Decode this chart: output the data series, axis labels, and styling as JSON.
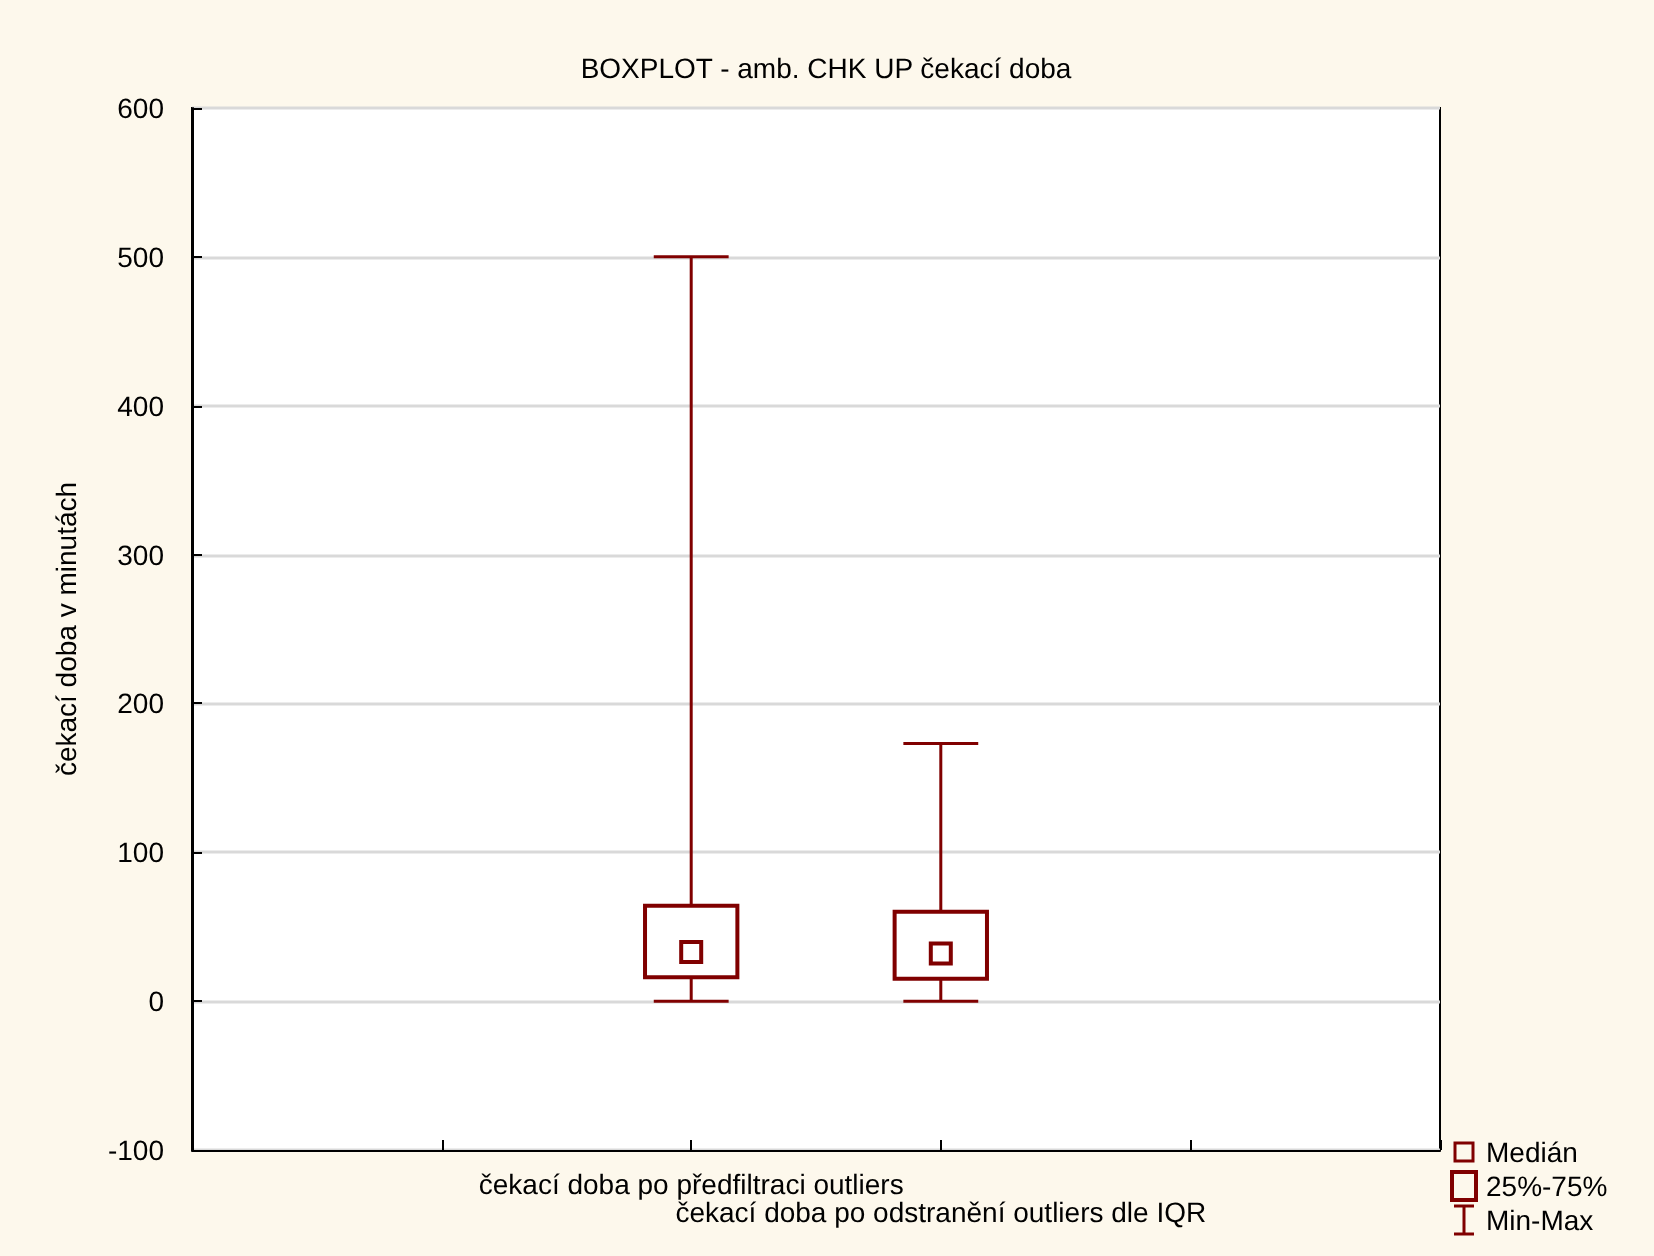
{
  "chart_data": {
    "type": "box",
    "title": "BOXPLOT - amb. CHK UP čekací doba",
    "ylabel": "čekací doba v minutách",
    "categories": [
      null,
      null,
      "čekací doba po předfiltraci outliers",
      "čekací doba po odstranění outliers dle IQR",
      null,
      null
    ],
    "color": "#800000",
    "boxes": [
      null,
      null,
      {
        "low": 0,
        "q1": 16,
        "median": 33,
        "q3": 64,
        "high": 500
      },
      {
        "low": 0,
        "q1": 15,
        "median": 32,
        "q3": 60,
        "high": 173
      },
      null,
      null
    ],
    "annotations": [
      "Medián",
      "25%-75%",
      "Min-Max"
    ],
    "ylim": [
      -100,
      600
    ],
    "yticks": [
      -100,
      0,
      100,
      200,
      300,
      400,
      500,
      600
    ],
    "grid": "y"
  }
}
